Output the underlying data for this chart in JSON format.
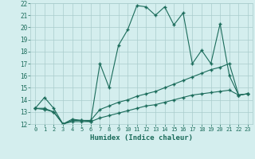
{
  "xlabel": "Humidex (Indice chaleur)",
  "bg_color": "#d4eeee",
  "grid_color": "#aacccc",
  "line_color": "#1a6b5a",
  "xmin": 0,
  "xmax": 23,
  "ymin": 12,
  "ymax": 22,
  "x": [
    0,
    1,
    2,
    3,
    4,
    5,
    6,
    7,
    8,
    9,
    10,
    11,
    12,
    13,
    14,
    15,
    16,
    17,
    18,
    19,
    20,
    21,
    22,
    23
  ],
  "line1": [
    13.3,
    14.2,
    13.3,
    12.0,
    12.3,
    12.3,
    12.2,
    17.0,
    15.0,
    18.5,
    19.8,
    21.8,
    21.7,
    21.0,
    21.7,
    20.2,
    21.2,
    17.0,
    18.1,
    17.0,
    20.3,
    16.0,
    14.4,
    14.5
  ],
  "line2": [
    13.3,
    13.3,
    13.0,
    12.0,
    12.4,
    12.3,
    12.3,
    13.2,
    13.5,
    13.8,
    14.0,
    14.3,
    14.5,
    14.7,
    15.0,
    15.3,
    15.6,
    15.9,
    16.2,
    16.5,
    16.7,
    17.0,
    14.4,
    14.5
  ],
  "line3": [
    13.3,
    13.2,
    13.0,
    12.0,
    12.2,
    12.2,
    12.2,
    12.5,
    12.7,
    12.9,
    13.1,
    13.3,
    13.5,
    13.6,
    13.8,
    14.0,
    14.2,
    14.4,
    14.5,
    14.6,
    14.7,
    14.8,
    14.4,
    14.5
  ]
}
